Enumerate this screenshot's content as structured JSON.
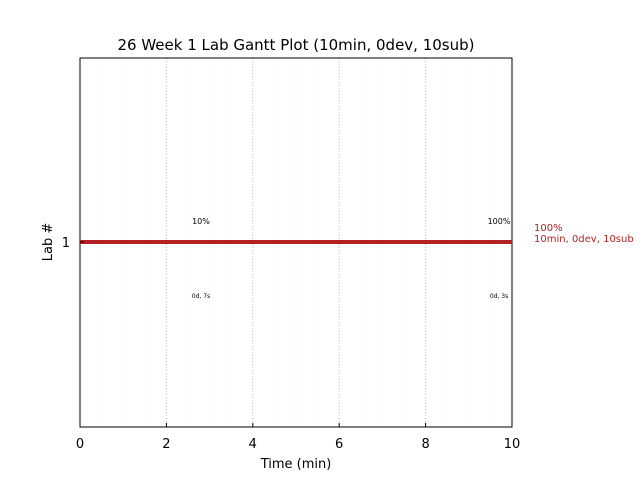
{
  "chart_data": {
    "type": "bar",
    "title": "26 Week 1 Lab Gantt Plot (10min, 0dev, 10sub)",
    "xlabel": "Time (min)",
    "ylabel": "Lab #",
    "xlim": [
      0,
      10
    ],
    "x_ticks": [
      0,
      2,
      4,
      6,
      8,
      10
    ],
    "x_tick_labels": [
      "0",
      "2",
      "4",
      "6",
      "8",
      "10"
    ],
    "minor_grid_step": 0.5,
    "major_grid_step": 2,
    "grid": true,
    "categories": [
      "1"
    ],
    "series": [
      {
        "category": "1",
        "start": 0,
        "end": 10,
        "color": "#b22222"
      }
    ],
    "annotations": [
      {
        "text": "10%",
        "x": 2.8,
        "position": "above"
      },
      {
        "text": "100%",
        "x": 9.7,
        "position": "above"
      },
      {
        "text": "0d, 7s",
        "x": 2.8,
        "position": "below"
      },
      {
        "text": "0d, 3s",
        "x": 9.7,
        "position": "below"
      }
    ],
    "side_label": {
      "line1": "100%",
      "line2": "10min, 0dev, 10sub",
      "color": "#b22222"
    }
  }
}
